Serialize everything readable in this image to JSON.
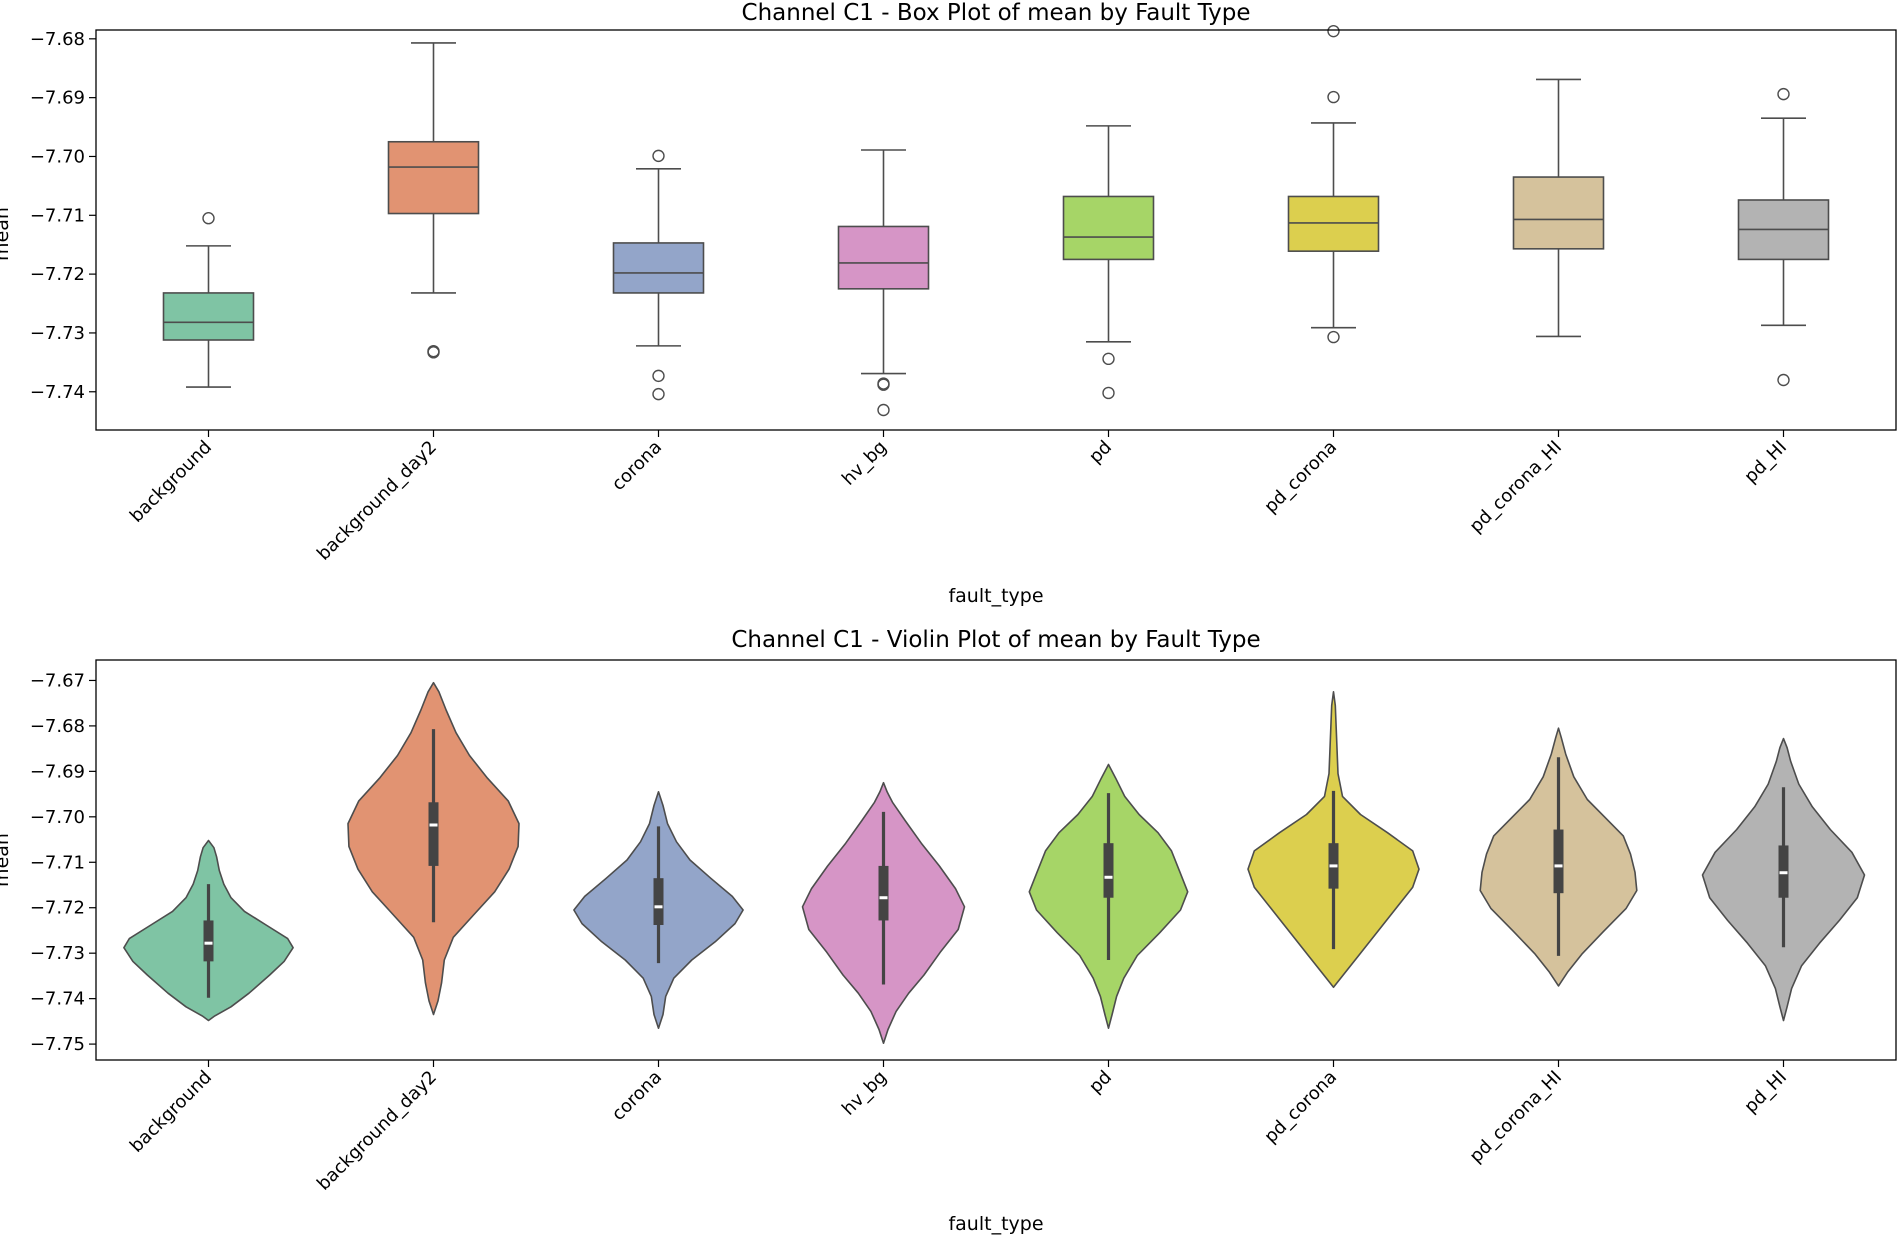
{
  "chart_data": [
    {
      "type": "box",
      "title": "Channel C1 - Box Plot of mean by Fault Type",
      "xlabel": "fault_type",
      "ylabel": "mean",
      "ylim": [
        -7.7465,
        -7.6785
      ],
      "yticks": [
        -7.74,
        -7.73,
        -7.72,
        -7.71,
        -7.7,
        -7.69,
        -7.68
      ],
      "ytick_labels": [
        "−7.74",
        "−7.73",
        "−7.72",
        "−7.71",
        "−7.70",
        "−7.69",
        "−7.68"
      ],
      "categories": [
        "background",
        "background_day2",
        "corona",
        "hv_bg",
        "pd",
        "pd_corona",
        "pd_corona_HI",
        "pd_HI"
      ],
      "colors": [
        "#7fc4a4",
        "#e19372",
        "#93a5c9",
        "#d695c6",
        "#a6d567",
        "#dccf4e",
        "#d5c29c",
        "#b3b3b3"
      ],
      "boxes": [
        {
          "whislo": -7.7392,
          "q1": -7.7312,
          "med": -7.7282,
          "q3": -7.7232,
          "whishi": -7.7152,
          "fliers": [
            -7.7105
          ]
        },
        {
          "whislo": -7.7232,
          "q1": -7.7097,
          "med": -7.7018,
          "q3": -7.6975,
          "whishi": -7.6807,
          "fliers": [
            -7.7333,
            -7.7331
          ]
        },
        {
          "whislo": -7.7322,
          "q1": -7.7232,
          "med": -7.7198,
          "q3": -7.7147,
          "whishi": -7.7021,
          "fliers": [
            -7.6999,
            -7.7373,
            -7.7404
          ]
        },
        {
          "whislo": -7.7369,
          "q1": -7.7225,
          "med": -7.7181,
          "q3": -7.7119,
          "whishi": -7.6989,
          "fliers": [
            -7.7386,
            -7.7388,
            -7.7431
          ]
        },
        {
          "whislo": -7.7315,
          "q1": -7.7175,
          "med": -7.7137,
          "q3": -7.7068,
          "whishi": -7.6948,
          "fliers": [
            -7.7344,
            -7.7402
          ]
        },
        {
          "whislo": -7.7291,
          "q1": -7.7161,
          "med": -7.7113,
          "q3": -7.7068,
          "whishi": -7.6943,
          "fliers": [
            -7.6787,
            -7.6899,
            -7.7307
          ]
        },
        {
          "whislo": -7.7306,
          "q1": -7.7157,
          "med": -7.7107,
          "q3": -7.7035,
          "whishi": -7.6869,
          "fliers": []
        },
        {
          "whislo": -7.7287,
          "q1": -7.7175,
          "med": -7.7124,
          "q3": -7.7074,
          "whishi": -7.6935,
          "fliers": [
            -7.6894,
            -7.738
          ]
        }
      ]
    },
    {
      "type": "violin",
      "title": "Channel C1 - Violin Plot of mean by Fault Type",
      "xlabel": "fault_type",
      "ylabel": "mean",
      "ylim": [
        -7.7535,
        -7.6655
      ],
      "yticks": [
        -7.75,
        -7.74,
        -7.73,
        -7.72,
        -7.71,
        -7.7,
        -7.69,
        -7.68,
        -7.67
      ],
      "ytick_labels": [
        "−7.75",
        "−7.74",
        "−7.73",
        "−7.72",
        "−7.71",
        "−7.70",
        "−7.69",
        "−7.68",
        "−7.67"
      ],
      "categories": [
        "background",
        "background_day2",
        "corona",
        "hv_bg",
        "pd",
        "pd_corona",
        "pd_corona_HI",
        "pd_HI"
      ],
      "colors": [
        "#7fc4a4",
        "#e19372",
        "#93a5c9",
        "#d695c6",
        "#a6d567",
        "#dccf4e",
        "#d5c29c",
        "#b3b3b3"
      ],
      "violins": [
        {
          "min": -7.7448,
          "max": -7.7052,
          "q1": -7.7318,
          "med": -7.7278,
          "q3": -7.7228,
          "whislo": -7.7398,
          "whishi": -7.7148,
          "profile": [
            [
              -7.7448,
              0.0
            ],
            [
              -7.7438,
              0.07
            ],
            [
              -7.7418,
              0.25
            ],
            [
              -7.7388,
              0.45
            ],
            [
              -7.7348,
              0.68
            ],
            [
              -7.7318,
              0.84
            ],
            [
              -7.7288,
              0.94
            ],
            [
              -7.7268,
              0.88
            ],
            [
              -7.7238,
              0.64
            ],
            [
              -7.7208,
              0.4
            ],
            [
              -7.7178,
              0.25
            ],
            [
              -7.7148,
              0.17
            ],
            [
              -7.7118,
              0.12
            ],
            [
              -7.7088,
              0.09
            ],
            [
              -7.7068,
              0.06
            ],
            [
              -7.7052,
              0.0
            ]
          ]
        },
        {
          "min": -7.7435,
          "max": -7.6705,
          "q1": -7.7108,
          "med": -7.7018,
          "q3": -7.6968,
          "whislo": -7.7232,
          "whishi": -7.6807,
          "profile": [
            [
              -7.7435,
              0.0
            ],
            [
              -7.7405,
              0.05
            ],
            [
              -7.7365,
              0.09
            ],
            [
              -7.7315,
              0.12
            ],
            [
              -7.7265,
              0.22
            ],
            [
              -7.7215,
              0.45
            ],
            [
              -7.7165,
              0.68
            ],
            [
              -7.7115,
              0.84
            ],
            [
              -7.7065,
              0.94
            ],
            [
              -7.7015,
              0.95
            ],
            [
              -7.6965,
              0.83
            ],
            [
              -7.6915,
              0.6
            ],
            [
              -7.6865,
              0.4
            ],
            [
              -7.6815,
              0.25
            ],
            [
              -7.6765,
              0.14
            ],
            [
              -7.6725,
              0.06
            ],
            [
              -7.6705,
              0.0
            ]
          ]
        },
        {
          "min": -7.7465,
          "max": -7.6945,
          "q1": -7.7238,
          "med": -7.7198,
          "q3": -7.7135,
          "whislo": -7.7322,
          "whishi": -7.7021,
          "profile": [
            [
              -7.7465,
              0.0
            ],
            [
              -7.7435,
              0.05
            ],
            [
              -7.7395,
              0.08
            ],
            [
              -7.7355,
              0.17
            ],
            [
              -7.7315,
              0.37
            ],
            [
              -7.7275,
              0.63
            ],
            [
              -7.7235,
              0.85
            ],
            [
              -7.7205,
              0.94
            ],
            [
              -7.7175,
              0.82
            ],
            [
              -7.7135,
              0.58
            ],
            [
              -7.7095,
              0.35
            ],
            [
              -7.7055,
              0.2
            ],
            [
              -7.7015,
              0.1
            ],
            [
              -7.6975,
              0.05
            ],
            [
              -7.6945,
              0.0
            ]
          ]
        },
        {
          "min": -7.7498,
          "max": -7.6925,
          "q1": -7.7228,
          "med": -7.7178,
          "q3": -7.7108,
          "whislo": -7.7369,
          "whishi": -7.6989,
          "profile": [
            [
              -7.7498,
              0.0
            ],
            [
              -7.7468,
              0.05
            ],
            [
              -7.7428,
              0.14
            ],
            [
              -7.7388,
              0.28
            ],
            [
              -7.7348,
              0.45
            ],
            [
              -7.7298,
              0.63
            ],
            [
              -7.7248,
              0.83
            ],
            [
              -7.7198,
              0.9
            ],
            [
              -7.7158,
              0.8
            ],
            [
              -7.7108,
              0.62
            ],
            [
              -7.7058,
              0.42
            ],
            [
              -7.7008,
              0.24
            ],
            [
              -7.6968,
              0.1
            ],
            [
              -7.6945,
              0.04
            ],
            [
              -7.6925,
              0.0
            ]
          ]
        },
        {
          "min": -7.7465,
          "max": -7.6885,
          "q1": -7.7178,
          "med": -7.7133,
          "q3": -7.7058,
          "whislo": -7.7315,
          "whishi": -7.6948,
          "profile": [
            [
              -7.7465,
              0.0
            ],
            [
              -7.7435,
              0.04
            ],
            [
              -7.7395,
              0.09
            ],
            [
              -7.7355,
              0.17
            ],
            [
              -7.7305,
              0.32
            ],
            [
              -7.7255,
              0.57
            ],
            [
              -7.7205,
              0.8
            ],
            [
              -7.7165,
              0.88
            ],
            [
              -7.7125,
              0.8
            ],
            [
              -7.7075,
              0.7
            ],
            [
              -7.7035,
              0.55
            ],
            [
              -7.6995,
              0.34
            ],
            [
              -7.6955,
              0.18
            ],
            [
              -7.6915,
              0.08
            ],
            [
              -7.6885,
              0.0
            ]
          ]
        },
        {
          "min": -7.7375,
          "max": -7.6725,
          "q1": -7.7158,
          "med": -7.7108,
          "q3": -7.7058,
          "whislo": -7.7291,
          "whishi": -7.6943,
          "profile": [
            [
              -7.7375,
              0.0
            ],
            [
              -7.7345,
              0.12
            ],
            [
              -7.7305,
              0.28
            ],
            [
              -7.7255,
              0.48
            ],
            [
              -7.7205,
              0.68
            ],
            [
              -7.7155,
              0.88
            ],
            [
              -7.7115,
              0.95
            ],
            [
              -7.7075,
              0.88
            ],
            [
              -7.7035,
              0.6
            ],
            [
              -7.6995,
              0.3
            ],
            [
              -7.6955,
              0.1
            ],
            [
              -7.6905,
              0.05
            ],
            [
              -7.6855,
              0.04
            ],
            [
              -7.6805,
              0.03
            ],
            [
              -7.6755,
              0.02
            ],
            [
              -7.6725,
              0.0
            ]
          ]
        },
        {
          "min": -7.7372,
          "max": -7.6805,
          "q1": -7.7168,
          "med": -7.7108,
          "q3": -7.7028,
          "whislo": -7.7306,
          "whishi": -7.6869,
          "profile": [
            [
              -7.7372,
              0.0
            ],
            [
              -7.7342,
              0.1
            ],
            [
              -7.7302,
              0.26
            ],
            [
              -7.7252,
              0.5
            ],
            [
              -7.7202,
              0.75
            ],
            [
              -7.7162,
              0.87
            ],
            [
              -7.7122,
              0.85
            ],
            [
              -7.7082,
              0.8
            ],
            [
              -7.7042,
              0.72
            ],
            [
              -7.7002,
              0.52
            ],
            [
              -7.6962,
              0.32
            ],
            [
              -7.6912,
              0.17
            ],
            [
              -7.6862,
              0.08
            ],
            [
              -7.6825,
              0.03
            ],
            [
              -7.6805,
              0.0
            ]
          ]
        },
        {
          "min": -7.7448,
          "max": -7.6828,
          "q1": -7.7178,
          "med": -7.7123,
          "q3": -7.7063,
          "whislo": -7.7287,
          "whishi": -7.6935,
          "profile": [
            [
              -7.7448,
              0.0
            ],
            [
              -7.7418,
              0.04
            ],
            [
              -7.7378,
              0.09
            ],
            [
              -7.7328,
              0.2
            ],
            [
              -7.7278,
              0.4
            ],
            [
              -7.7228,
              0.62
            ],
            [
              -7.7178,
              0.82
            ],
            [
              -7.7128,
              0.9
            ],
            [
              -7.7078,
              0.76
            ],
            [
              -7.7028,
              0.52
            ],
            [
              -7.6978,
              0.32
            ],
            [
              -7.6928,
              0.17
            ],
            [
              -7.6878,
              0.08
            ],
            [
              -7.6848,
              0.04
            ],
            [
              -7.6828,
              0.0
            ]
          ]
        }
      ]
    }
  ]
}
